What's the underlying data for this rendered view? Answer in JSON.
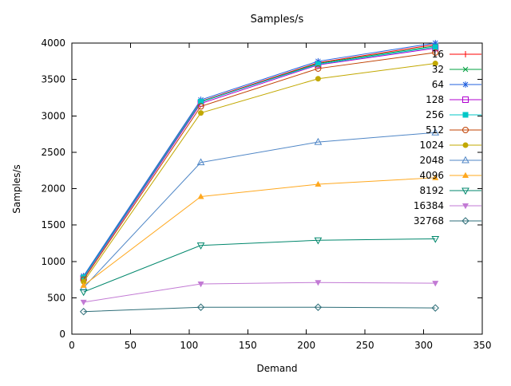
{
  "chart_data": {
    "type": "line",
    "title": "Samples/s",
    "xlabel": "Demand",
    "ylabel": "Samples/s",
    "xlim": [
      0,
      350
    ],
    "ylim": [
      0,
      4000
    ],
    "x_ticks": [
      0,
      50,
      100,
      150,
      200,
      250,
      300,
      350
    ],
    "y_ticks": [
      0,
      500,
      1000,
      1500,
      2000,
      2500,
      3000,
      3500,
      4000
    ],
    "grid": false,
    "legend_position": "top-right",
    "x": [
      10,
      110,
      210,
      310
    ],
    "series": [
      {
        "name": "16",
        "color": "#ff0000",
        "marker": "plus",
        "values": [
          790,
          3200,
          3730,
          3980
        ]
      },
      {
        "name": "32",
        "color": "#00a040",
        "marker": "cross",
        "values": [
          780,
          3190,
          3720,
          3960
        ]
      },
      {
        "name": "64",
        "color": "#2060df",
        "marker": "asterisk",
        "values": [
          800,
          3220,
          3750,
          4000
        ]
      },
      {
        "name": "128",
        "color": "#b000d0",
        "marker": "square-open",
        "values": [
          770,
          3170,
          3700,
          3930
        ]
      },
      {
        "name": "256",
        "color": "#00c7c7",
        "marker": "square-filled",
        "values": [
          780,
          3195,
          3710,
          3945
        ]
      },
      {
        "name": "512",
        "color": "#c04000",
        "marker": "circle-open",
        "values": [
          750,
          3130,
          3650,
          3870
        ]
      },
      {
        "name": "1024",
        "color": "#c2a800",
        "marker": "circle-filled",
        "values": [
          720,
          3040,
          3510,
          3720
        ]
      },
      {
        "name": "2048",
        "color": "#4f86c6",
        "marker": "triangle-up-open",
        "values": [
          640,
          2360,
          2640,
          2770
        ]
      },
      {
        "name": "4096",
        "color": "#ffa81e",
        "marker": "triangle-up-filled",
        "values": [
          670,
          1890,
          2060,
          2150
        ]
      },
      {
        "name": "8192",
        "color": "#00876c",
        "marker": "triangle-down-open",
        "values": [
          580,
          1220,
          1290,
          1310
        ]
      },
      {
        "name": "16384",
        "color": "#c27ad4",
        "marker": "triangle-down-filled",
        "values": [
          440,
          690,
          710,
          700
        ]
      },
      {
        "name": "32768",
        "color": "#2e6e78",
        "marker": "diamond-open",
        "values": [
          310,
          370,
          370,
          360
        ]
      }
    ]
  }
}
